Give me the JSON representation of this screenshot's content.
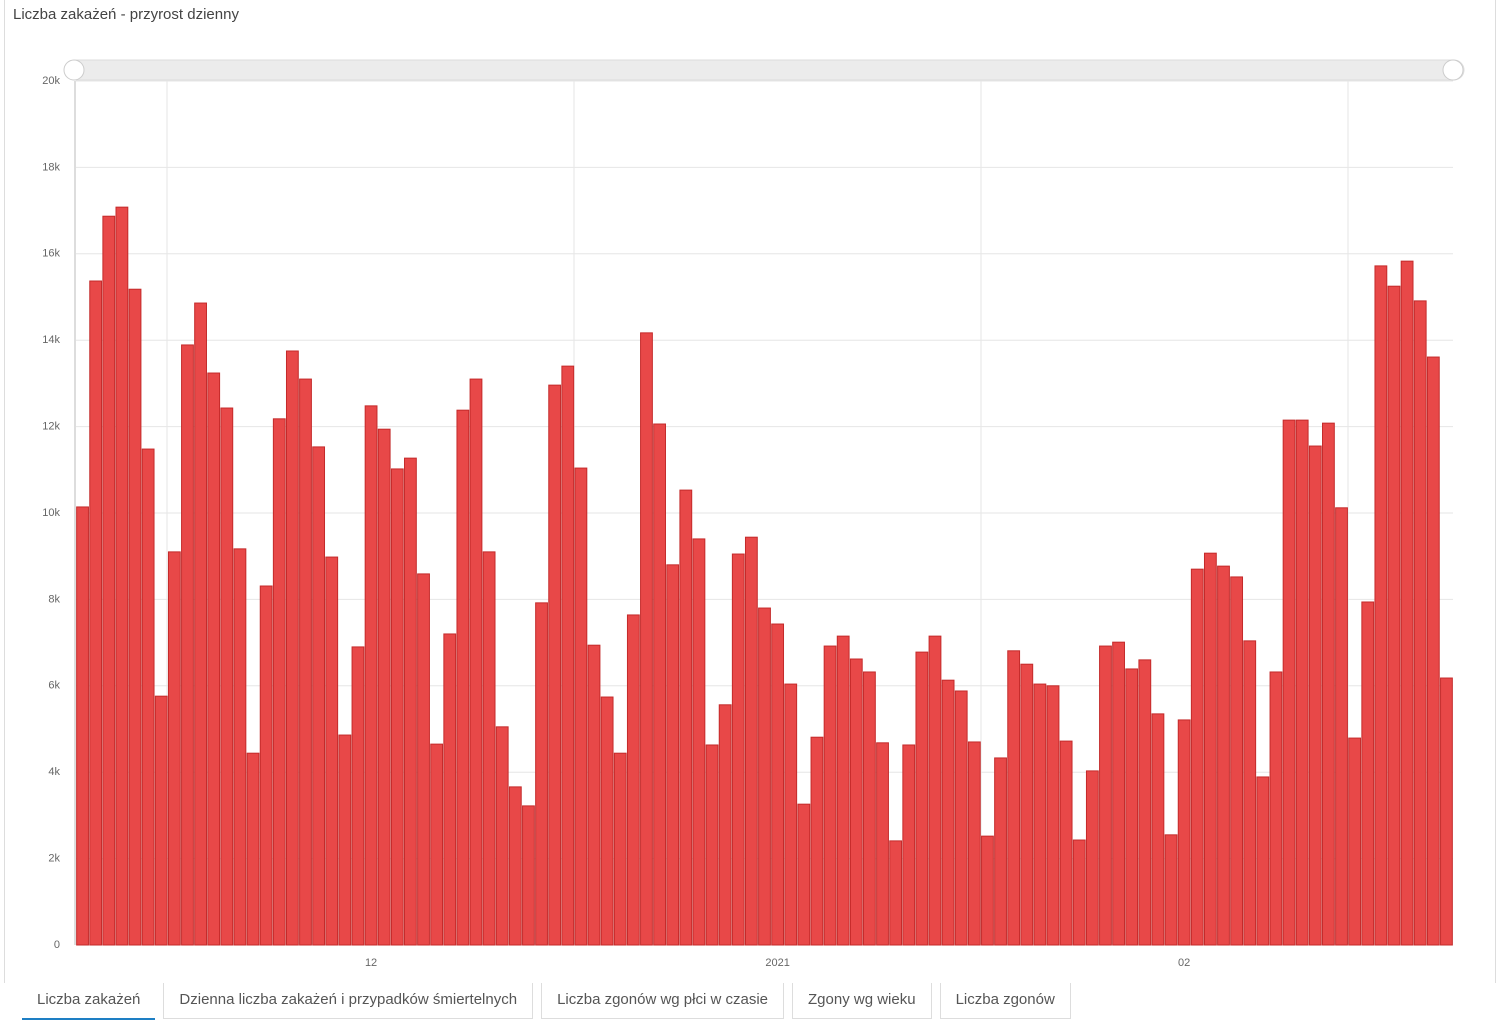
{
  "header": {
    "title": "Liczba zakażeń - przyrost dzienny"
  },
  "chart_data": {
    "type": "bar",
    "color": "#e84848",
    "grid": true,
    "categories": [
      null,
      null,
      null,
      null,
      null,
      null,
      null,
      null,
      null,
      null,
      null,
      null,
      null,
      null,
      null,
      null,
      null,
      null,
      null,
      null,
      null,
      null,
      "12",
      null,
      null,
      null,
      null,
      null,
      null,
      null,
      null,
      null,
      null,
      null,
      null,
      null,
      null,
      null,
      null,
      null,
      null,
      null,
      null,
      null,
      null,
      null,
      null,
      null,
      null,
      null,
      null,
      null,
      null,
      "2021",
      null,
      null,
      null,
      null,
      null,
      null,
      null,
      null,
      null,
      null,
      null,
      null,
      null,
      null,
      null,
      null,
      null,
      null,
      null,
      null,
      null,
      null,
      null,
      null,
      null,
      null,
      null,
      null,
      null,
      null,
      "02",
      null,
      null,
      null,
      null,
      null,
      null,
      null,
      null,
      null,
      null,
      null,
      null,
      null,
      null,
      null,
      null,
      null,
      null,
      null,
      null
    ],
    "values": [
      10140,
      15370,
      16870,
      17080,
      15180,
      11480,
      5760,
      9100,
      13890,
      14860,
      13240,
      12430,
      9170,
      4440,
      8310,
      12180,
      13750,
      13100,
      11530,
      8980,
      4860,
      6900,
      12480,
      11940,
      11020,
      11270,
      8590,
      4650,
      7200,
      12380,
      13100,
      9100,
      5050,
      3660,
      3220,
      7920,
      12960,
      13400,
      11040,
      6940,
      5740,
      4440,
      7640,
      14170,
      12060,
      8800,
      10530,
      9400,
      4630,
      5560,
      9050,
      9440,
      7800,
      7430,
      6040,
      3260,
      4810,
      6920,
      7150,
      6620,
      6320,
      4680,
      2410,
      4630,
      6780,
      7150,
      6130,
      5880,
      4700,
      2520,
      4330,
      6810,
      6500,
      6040,
      6000,
      4720,
      2430,
      4030,
      6920,
      7010,
      6390,
      6600,
      5350,
      2550,
      5210,
      8700,
      9070,
      8770,
      8520,
      7040,
      3890,
      6320,
      12150,
      12150,
      11550,
      12080,
      10120,
      4790,
      7940,
      15720,
      15250,
      15830,
      14910,
      13610,
      6180
    ],
    "ylim": [
      0,
      20000
    ],
    "yticks": [
      0,
      {
        "value": 2000,
        "label": "2k"
      },
      {
        "value": 4000,
        "label": "4k"
      },
      {
        "value": 6000,
        "label": "6k"
      },
      {
        "value": 8000,
        "label": "8k"
      },
      {
        "value": 10000,
        "label": "10k"
      },
      {
        "value": 12000,
        "label": "12k"
      },
      {
        "value": 14000,
        "label": "14k"
      },
      {
        "value": 16000,
        "label": "16k"
      },
      {
        "value": 18000,
        "label": "18k"
      },
      {
        "value": 20000,
        "label": "20k"
      }
    ]
  },
  "tabs": [
    "Liczba zakażeń",
    "Dzienna liczba zakażeń i przypadków śmiertelnych",
    "Liczba zgonów wg płci w czasie",
    "Zgony wg wieku",
    "Liczba zgonów"
  ]
}
